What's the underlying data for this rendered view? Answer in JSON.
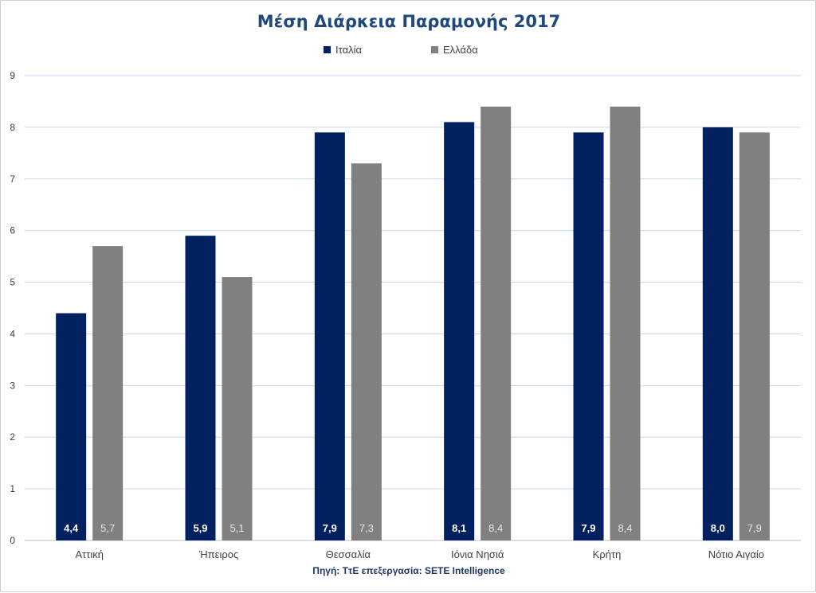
{
  "chart_data": {
    "type": "bar",
    "title": "Μέση Διάρκεια Παραμονής 2017",
    "categories": [
      "Αττική",
      "Ήπειρος",
      "Θεσσαλία",
      "Ιόνια Νησιά",
      "Κρήτη",
      "Νότιο Αιγαίο"
    ],
    "series": [
      {
        "name": "Ιταλία",
        "color": "#002060",
        "values": [
          4.4,
          5.9,
          7.9,
          8.1,
          7.9,
          8.0
        ],
        "labels": [
          "4,4",
          "5,9",
          "7,9",
          "8,1",
          "7,9",
          "8,0"
        ]
      },
      {
        "name": "Ελλάδα",
        "color": "#808080",
        "values": [
          5.7,
          5.1,
          7.3,
          8.4,
          8.4,
          7.9
        ],
        "labels": [
          "5,7",
          "5,1",
          "7,3",
          "8,4",
          "8,4",
          "7,9"
        ]
      }
    ],
    "ylim": [
      0,
      9
    ],
    "yticks": [
      "0",
      "1",
      "2",
      "3",
      "4",
      "5",
      "6",
      "7",
      "8",
      "9"
    ],
    "grid": true,
    "legend_position": "top-center",
    "source": "Πηγή: ΤτΕ επεξεργασία: SETE Intelligence"
  }
}
